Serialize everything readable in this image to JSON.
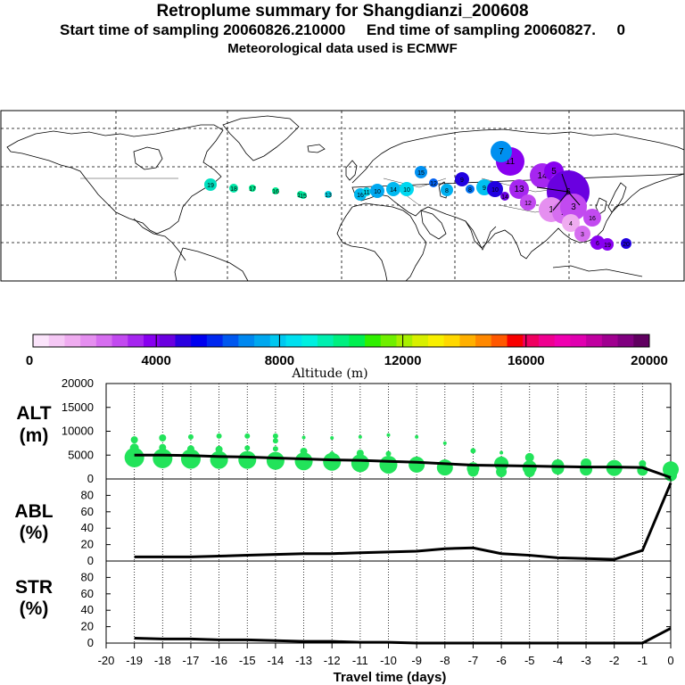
{
  "header": {
    "title": "Retroplume summary for Shangdianzi_200608",
    "sampling": "Start time of sampling 20060826.210000     End time of sampling 20060827.     0",
    "met": "Meteorological data used is ECMWF"
  },
  "colorbar": {
    "ticks": [
      "0",
      "4000",
      "8000",
      "12000",
      "16000",
      "20000"
    ],
    "label": "Altitude (m)",
    "colors": [
      "#fbe4fb",
      "#f5c8f5",
      "#efacf0",
      "#e58ff0",
      "#d66ef0",
      "#c24af0",
      "#a626f0",
      "#8800f0",
      "#6a00e0",
      "#2a00e0",
      "#0000f0",
      "#0028f0",
      "#0058f0",
      "#0088f0",
      "#00a8f0",
      "#00c8f0",
      "#00e0f0",
      "#00f0e0",
      "#00f0b0",
      "#00f080",
      "#00f050",
      "#30f000",
      "#70f000",
      "#a8f000",
      "#d8f000",
      "#f8f000",
      "#ffd800",
      "#ffb000",
      "#ff8800",
      "#ff5800",
      "#f80000",
      "#f00060",
      "#f00090",
      "#f000b0",
      "#e000b0",
      "#c000a0",
      "#a00090",
      "#800080",
      "#600060"
    ]
  },
  "map": {
    "land_color": "#000000",
    "markers": [
      {
        "label": "19",
        "color": "#00e0c0"
      },
      {
        "label": "18",
        "color": "#00e8a8"
      },
      {
        "label": "17",
        "color": "#00e890"
      },
      {
        "label": "16",
        "color": "#00e890"
      },
      {
        "label": "16",
        "color": "#00e898"
      },
      {
        "label": "15",
        "color": "#00e8a0"
      },
      {
        "label": "13",
        "color": "#00d0e0"
      },
      {
        "label": "16",
        "color": "#00b8f0"
      },
      {
        "label": "11",
        "color": "#00d0e8"
      },
      {
        "label": "10",
        "color": "#00a8f0"
      },
      {
        "label": "14",
        "color": "#00b8f0"
      },
      {
        "label": "10",
        "color": "#00d8f0"
      },
      {
        "label": "15",
        "color": "#0090f0"
      },
      {
        "label": "12",
        "color": "#0060f0"
      },
      {
        "label": "8",
        "color": "#00b0f0"
      },
      {
        "label": "9",
        "color": "#2000e0"
      },
      {
        "label": "8",
        "color": "#0070f0"
      },
      {
        "label": "9",
        "color": "#00c0f0"
      },
      {
        "label": "10",
        "color": "#2000e0"
      },
      {
        "label": "14",
        "color": "#6a00e0"
      },
      {
        "label": "11",
        "color": "#8800f0"
      },
      {
        "label": "7",
        "color": "#0090f0"
      },
      {
        "label": "13",
        "color": "#a626f0"
      },
      {
        "label": "12",
        "color": "#c24af0"
      },
      {
        "label": "14",
        "color": "#a626f0"
      },
      {
        "label": "5",
        "color": "#8800f0"
      },
      {
        "label": "5",
        "color": "#e58ff0"
      },
      {
        "label": "6",
        "color": "#6a00e0"
      },
      {
        "label": "1",
        "color": "#e58ff0"
      },
      {
        "label": "2",
        "color": "#d66ef0"
      },
      {
        "label": "3",
        "color": "#c24af0"
      },
      {
        "label": "4",
        "color": "#efacf0"
      },
      {
        "label": "3",
        "color": "#d66ef0"
      },
      {
        "label": "16",
        "color": "#c24af0"
      },
      {
        "label": "6",
        "color": "#8800f0"
      },
      {
        "label": "19",
        "color": "#8800f0"
      },
      {
        "label": "20",
        "color": "#2000e0"
      }
    ]
  },
  "chart_data": [
    {
      "type": "line",
      "panel": "ALT",
      "ylabel": "ALT\n(m)",
      "ylim": [
        0,
        20000
      ],
      "yticks": [
        "0",
        "5000",
        "10000",
        "15000",
        "20000"
      ],
      "x": [
        -19,
        -18,
        -17,
        -16,
        -15,
        -14,
        -13,
        -12,
        -11,
        -10,
        -9,
        -8,
        -7,
        -6,
        -5,
        -4,
        -3,
        -2,
        -1,
        0
      ],
      "series": [
        {
          "name": "mean altitude",
          "values": [
            5000,
            5000,
            4900,
            4700,
            4600,
            4400,
            4200,
            4000,
            3900,
            3700,
            3500,
            3200,
            2900,
            2800,
            2700,
            2600,
            2500,
            2500,
            2400,
            300
          ]
        }
      ],
      "clusters": [
        {
          "x": -19,
          "alts": [
            8200,
            6500,
            4500
          ],
          "sizes": [
            4,
            5,
            11
          ]
        },
        {
          "x": -18,
          "alts": [
            8600,
            6600,
            4300
          ],
          "sizes": [
            4,
            4,
            11
          ]
        },
        {
          "x": -17,
          "alts": [
            8800,
            6300,
            4200
          ],
          "sizes": [
            3,
            4,
            11
          ]
        },
        {
          "x": -16,
          "alts": [
            9000,
            6200,
            4000
          ],
          "sizes": [
            3,
            4,
            10
          ]
        },
        {
          "x": -15,
          "alts": [
            9000,
            6500,
            4000
          ],
          "sizes": [
            3,
            3,
            10
          ]
        },
        {
          "x": -14,
          "alts": [
            9000,
            8000,
            6300,
            3800
          ],
          "sizes": [
            3,
            3,
            3,
            10
          ]
        },
        {
          "x": -13,
          "alts": [
            8700,
            5800,
            3700
          ],
          "sizes": [
            2,
            4,
            10
          ]
        },
        {
          "x": -12,
          "alts": [
            8600,
            5200,
            3600
          ],
          "sizes": [
            2,
            3,
            10
          ]
        },
        {
          "x": -11,
          "alts": [
            8800,
            5400,
            3300
          ],
          "sizes": [
            2,
            4,
            10
          ]
        },
        {
          "x": -10,
          "alts": [
            9200,
            5300,
            3000
          ],
          "sizes": [
            2,
            3,
            10
          ]
        },
        {
          "x": -9,
          "alts": [
            8800,
            3000
          ],
          "sizes": [
            2,
            9
          ]
        },
        {
          "x": -8,
          "alts": [
            7500,
            2400
          ],
          "sizes": [
            2,
            9
          ]
        },
        {
          "x": -7,
          "alts": [
            5900,
            2200,
            1600
          ],
          "sizes": [
            3,
            7,
            6
          ]
        },
        {
          "x": -6,
          "alts": [
            5500,
            3200,
            1500
          ],
          "sizes": [
            2,
            8,
            6
          ]
        },
        {
          "x": -5,
          "alts": [
            4500,
            2400,
            1500
          ],
          "sizes": [
            5,
            8,
            6
          ]
        },
        {
          "x": -4,
          "alts": [
            2800,
            2200
          ],
          "sizes": [
            7,
            7
          ]
        },
        {
          "x": -3,
          "alts": [
            3200,
            2000
          ],
          "sizes": [
            6,
            7
          ]
        },
        {
          "x": -2,
          "alts": [
            2700,
            2300
          ],
          "sizes": [
            6,
            9
          ]
        },
        {
          "x": -1,
          "alts": [
            3200,
            1800
          ],
          "sizes": [
            4,
            6
          ]
        },
        {
          "x": 0,
          "alts": [
            2000,
            800
          ],
          "sizes": [
            9,
            7
          ]
        }
      ]
    },
    {
      "type": "line",
      "panel": "ABL",
      "ylabel": "ABL\n(%)",
      "ylim": [
        0,
        100
      ],
      "yticks": [
        "0",
        "20",
        "40",
        "60",
        "80"
      ],
      "x": [
        -19,
        -18,
        -17,
        -16,
        -15,
        -14,
        -13,
        -12,
        -11,
        -10,
        -9,
        -8,
        -7,
        -6,
        -5,
        -4,
        -3,
        -2,
        -1,
        0
      ],
      "series": [
        {
          "name": "ABL fraction",
          "values": [
            5,
            5,
            5,
            6,
            7,
            8,
            9,
            9,
            10,
            11,
            12,
            15,
            16,
            9,
            7,
            4,
            3,
            2,
            13,
            95
          ]
        }
      ]
    },
    {
      "type": "line",
      "panel": "STR",
      "ylabel": "STR\n(%)",
      "ylim": [
        0,
        100
      ],
      "yticks": [
        "0",
        "20",
        "40",
        "60",
        "80"
      ],
      "x": [
        -19,
        -18,
        -17,
        -16,
        -15,
        -14,
        -13,
        -12,
        -11,
        -10,
        -9,
        -8,
        -7,
        -6,
        -5,
        -4,
        -3,
        -2,
        -1,
        0
      ],
      "series": [
        {
          "name": "stratosphere fraction",
          "values": [
            6,
            5,
            5,
            4,
            4,
            3,
            2,
            2,
            1,
            1,
            0,
            0,
            0,
            0,
            0,
            0,
            0,
            0,
            0,
            18
          ]
        }
      ]
    }
  ],
  "xaxis": {
    "label": "Travel time (days)",
    "ticks": [
      "-20",
      "-19",
      "-18",
      "-17",
      "-16",
      "-15",
      "-14",
      "-13",
      "-12",
      "-11",
      "-10",
      "-9",
      "-8",
      "-7",
      "-6",
      "-5",
      "-4",
      "-3",
      "-2",
      "-1",
      "0"
    ]
  }
}
